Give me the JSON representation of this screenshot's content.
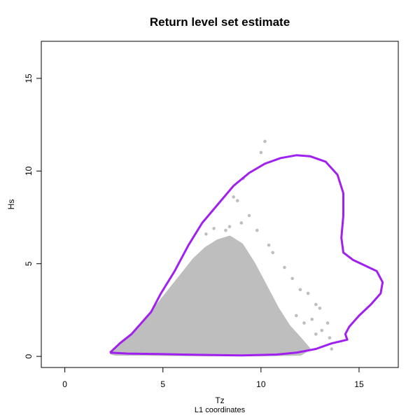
{
  "chart_data": {
    "type": "scatter",
    "title": "Return level set estimate",
    "xlabel": "Tz",
    "ylabel": "Hs",
    "subtitle": "L1 coordinates",
    "xlim": [
      -1.2,
      17
    ],
    "ylim": [
      -0.6,
      17
    ],
    "x_ticks": [
      0,
      5,
      10,
      15
    ],
    "y_ticks": [
      0,
      5,
      10,
      15
    ],
    "grid": false,
    "point_color": "#bebebe",
    "contour_color": "#a020f0",
    "scatter_cloud": {
      "description_hull": [
        [
          2.4,
          0.2
        ],
        [
          3.0,
          0.8
        ],
        [
          3.6,
          1.3
        ],
        [
          4.2,
          2.0
        ],
        [
          4.8,
          2.8
        ],
        [
          5.4,
          3.6
        ],
        [
          6.0,
          4.4
        ],
        [
          6.6,
          5.2
        ],
        [
          7.2,
          5.8
        ],
        [
          7.8,
          6.2
        ],
        [
          8.4,
          6.4
        ],
        [
          9.0,
          6.0
        ],
        [
          9.6,
          5.0
        ],
        [
          10.2,
          3.8
        ],
        [
          10.8,
          2.6
        ],
        [
          11.4,
          1.6
        ],
        [
          12.0,
          0.9
        ],
        [
          12.4,
          0.4
        ],
        [
          12.0,
          0.15
        ],
        [
          10.0,
          0.12
        ],
        [
          7.0,
          0.12
        ],
        [
          4.0,
          0.15
        ],
        [
          2.6,
          0.15
        ]
      ],
      "outliers": [
        [
          10.2,
          11.6
        ],
        [
          10.0,
          11.0
        ],
        [
          9.1,
          9.6
        ],
        [
          8.6,
          8.6
        ],
        [
          8.8,
          8.4
        ],
        [
          9.4,
          7.6
        ],
        [
          9.0,
          7.2
        ],
        [
          9.8,
          6.8
        ],
        [
          10.4,
          6.0
        ],
        [
          10.6,
          5.6
        ],
        [
          11.2,
          4.8
        ],
        [
          11.6,
          4.2
        ],
        [
          12.0,
          3.6
        ],
        [
          12.4,
          3.4
        ],
        [
          12.8,
          2.8
        ],
        [
          13.0,
          2.6
        ],
        [
          12.6,
          2.0
        ],
        [
          13.4,
          1.8
        ],
        [
          13.1,
          1.4
        ],
        [
          13.5,
          1.0
        ],
        [
          12.8,
          1.2
        ],
        [
          13.6,
          0.4
        ],
        [
          11.8,
          2.2
        ],
        [
          12.2,
          1.8
        ],
        [
          8.2,
          6.8
        ],
        [
          8.4,
          7.0
        ],
        [
          7.6,
          6.9
        ],
        [
          7.2,
          6.6
        ]
      ]
    },
    "contour": {
      "name": "",
      "points": [
        [
          2.3,
          0.2
        ],
        [
          2.8,
          0.7
        ],
        [
          3.4,
          1.2
        ],
        [
          3.9,
          1.8
        ],
        [
          4.4,
          2.4
        ],
        [
          4.9,
          3.4
        ],
        [
          5.6,
          4.6
        ],
        [
          6.3,
          6.0
        ],
        [
          7.0,
          7.2
        ],
        [
          7.8,
          8.2
        ],
        [
          8.6,
          9.2
        ],
        [
          9.4,
          9.9
        ],
        [
          10.2,
          10.4
        ],
        [
          11.0,
          10.7
        ],
        [
          11.8,
          10.85
        ],
        [
          12.5,
          10.8
        ],
        [
          13.3,
          10.5
        ],
        [
          13.9,
          9.8
        ],
        [
          14.2,
          8.8
        ],
        [
          14.2,
          7.6
        ],
        [
          14.1,
          6.4
        ],
        [
          14.2,
          5.6
        ],
        [
          14.7,
          5.2
        ],
        [
          15.3,
          4.9
        ],
        [
          15.9,
          4.6
        ],
        [
          16.2,
          4.0
        ],
        [
          16.1,
          3.4
        ],
        [
          15.6,
          2.8
        ],
        [
          15.0,
          2.2
        ],
        [
          14.5,
          1.6
        ],
        [
          14.3,
          1.2
        ],
        [
          14.4,
          0.9
        ],
        [
          13.6,
          0.7
        ],
        [
          12.8,
          0.4
        ],
        [
          11.8,
          0.2
        ],
        [
          10.8,
          0.1
        ],
        [
          9.0,
          0.05
        ],
        [
          7.0,
          0.08
        ],
        [
          5.0,
          0.12
        ],
        [
          3.2,
          0.15
        ],
        [
          2.3,
          0.2
        ]
      ]
    }
  }
}
